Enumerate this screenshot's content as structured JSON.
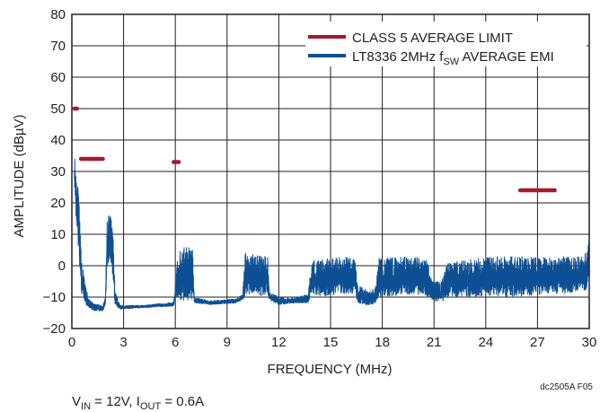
{
  "figure_code": "dc2505A F05",
  "conditions": {
    "vin_main": "V",
    "vin_sub": "IN",
    "vin_value": " = 12V, I",
    "iout_sub": "OUT",
    "iout_value": " = 0.6A"
  },
  "colors": {
    "limit": "#a6192e",
    "emi": "#0d4f94",
    "grid": "#231f20",
    "text": "#231f20"
  },
  "chart_data": {
    "type": "line",
    "title": "",
    "xlabel": "FREQUENCY (MHz)",
    "ylabel": "AMPLITUDE (dBµV)",
    "xlim": [
      0,
      30
    ],
    "ylim": [
      -20,
      80
    ],
    "xticks": [
      0,
      3,
      6,
      9,
      12,
      15,
      18,
      21,
      24,
      27,
      30
    ],
    "yticks": [
      -20,
      -10,
      0,
      10,
      20,
      30,
      40,
      50,
      60,
      70,
      80
    ],
    "grid": true,
    "legend_position": "top-right",
    "legend": [
      {
        "main": "CLASS 5 AVERAGE LIMIT",
        "sub": "",
        "tail": ""
      },
      {
        "main": "LT8336 2MHz f",
        "sub": "SW",
        "tail": " AVERAGE EMI"
      }
    ],
    "series": [
      {
        "name": "CLASS 5 AVERAGE LIMIT",
        "color": "#a6192e",
        "segments": [
          {
            "x": [
              0.15,
              0.3
            ],
            "y": [
              50,
              50
            ]
          },
          {
            "x": [
              0.53,
              1.8
            ],
            "y": [
              34,
              34
            ]
          },
          {
            "x": [
              5.9,
              6.2
            ],
            "y": [
              33,
              33
            ]
          },
          {
            "x": [
              26,
              28
            ],
            "y": [
              24,
              24
            ]
          }
        ]
      },
      {
        "name": "LT8336 2MHz fSW AVERAGE EMI",
        "color": "#0d4f94",
        "envelope": [
          {
            "x": 0.15,
            "lo": 26,
            "hi": 36
          },
          {
            "x": 0.25,
            "lo": 14,
            "hi": 32
          },
          {
            "x": 0.4,
            "lo": 4,
            "hi": 22
          },
          {
            "x": 0.55,
            "lo": -9,
            "hi": 3
          },
          {
            "x": 0.75,
            "lo": -12,
            "hi": -5
          },
          {
            "x": 0.95,
            "lo": -13.5,
            "hi": -10
          },
          {
            "x": 1.3,
            "lo": -14.5,
            "hi": -12
          },
          {
            "x": 1.8,
            "lo": -14.5,
            "hi": -12.5
          },
          {
            "x": 1.95,
            "lo": -13,
            "hi": -9
          },
          {
            "x": 2.05,
            "lo": 0,
            "hi": 17
          },
          {
            "x": 2.25,
            "lo": 2,
            "hi": 16
          },
          {
            "x": 2.4,
            "lo": -5,
            "hi": 10
          },
          {
            "x": 2.5,
            "lo": -12.5,
            "hi": -8
          },
          {
            "x": 2.8,
            "lo": -14,
            "hi": -12.5
          },
          {
            "x": 4.0,
            "lo": -13.5,
            "hi": -12.5
          },
          {
            "x": 5.9,
            "lo": -13,
            "hi": -11.5
          },
          {
            "x": 6.02,
            "lo": -10,
            "hi": -5
          },
          {
            "x": 6.15,
            "lo": -12,
            "hi": 5
          },
          {
            "x": 6.5,
            "lo": -12,
            "hi": 6
          },
          {
            "x": 7.0,
            "lo": -11,
            "hi": 6
          },
          {
            "x": 7.1,
            "lo": -12,
            "hi": -10
          },
          {
            "x": 8.0,
            "lo": -12.5,
            "hi": -11
          },
          {
            "x": 9.5,
            "lo": -12,
            "hi": -10.5
          },
          {
            "x": 9.9,
            "lo": -11,
            "hi": -9
          },
          {
            "x": 10.05,
            "lo": -10,
            "hi": 4
          },
          {
            "x": 10.5,
            "lo": -9,
            "hi": 4
          },
          {
            "x": 11.0,
            "lo": -10,
            "hi": 3
          },
          {
            "x": 11.35,
            "lo": -9,
            "hi": 3.5
          },
          {
            "x": 11.45,
            "lo": -11,
            "hi": -8
          },
          {
            "x": 12.0,
            "lo": -12.5,
            "hi": -10
          },
          {
            "x": 13.0,
            "lo": -12,
            "hi": -10
          },
          {
            "x": 13.7,
            "lo": -12,
            "hi": -9
          },
          {
            "x": 13.9,
            "lo": -9,
            "hi": 2
          },
          {
            "x": 14.5,
            "lo": -10,
            "hi": 2
          },
          {
            "x": 15.5,
            "lo": -9,
            "hi": 3
          },
          {
            "x": 16.4,
            "lo": -9,
            "hi": 2.5
          },
          {
            "x": 16.6,
            "lo": -12,
            "hi": -6
          },
          {
            "x": 17.2,
            "lo": -13,
            "hi": -8
          },
          {
            "x": 17.6,
            "lo": -12,
            "hi": -7
          },
          {
            "x": 17.8,
            "lo": -10,
            "hi": 3
          },
          {
            "x": 18.7,
            "lo": -10,
            "hi": 3
          },
          {
            "x": 19.8,
            "lo": -9,
            "hi": 3
          },
          {
            "x": 20.6,
            "lo": -10,
            "hi": 2
          },
          {
            "x": 20.9,
            "lo": -11,
            "hi": -5
          },
          {
            "x": 21.4,
            "lo": -12,
            "hi": -5
          },
          {
            "x": 21.8,
            "lo": -10,
            "hi": 1
          },
          {
            "x": 23.0,
            "lo": -10,
            "hi": 2
          },
          {
            "x": 24.5,
            "lo": -10,
            "hi": 3
          },
          {
            "x": 26.0,
            "lo": -10,
            "hi": 3
          },
          {
            "x": 27.5,
            "lo": -9,
            "hi": 3
          },
          {
            "x": 28.8,
            "lo": -9,
            "hi": 3
          },
          {
            "x": 29.5,
            "lo": -8,
            "hi": 3
          },
          {
            "x": 29.85,
            "lo": -8,
            "hi": 5
          },
          {
            "x": 30.0,
            "lo": -4,
            "hi": 8
          }
        ]
      }
    ]
  }
}
